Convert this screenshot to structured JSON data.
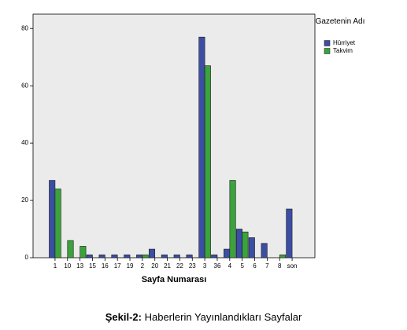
{
  "chart_data": {
    "type": "bar",
    "categories": [
      "1",
      "10",
      "13",
      "15",
      "16",
      "17",
      "19",
      "2",
      "20",
      "21",
      "22",
      "23",
      "3",
      "36",
      "4",
      "5",
      "6",
      "7",
      "8",
      "son"
    ],
    "series": [
      {
        "name": "Hürriyet",
        "color": "#3b4ea3",
        "values": [
          27,
          0,
          0,
          1,
          1,
          1,
          1,
          1,
          3,
          1,
          1,
          1,
          77,
          1,
          3,
          10,
          7,
          5,
          0,
          17
        ]
      },
      {
        "name": "Takvim",
        "color": "#3ba33b",
        "values": [
          24,
          6,
          4,
          0,
          0,
          0,
          0,
          1,
          0,
          0,
          0,
          0,
          67,
          0,
          27,
          9,
          0,
          0,
          1,
          0
        ]
      }
    ],
    "x_label": "Sayfa Numarası",
    "legend_title": "Gazetenin Adı",
    "ylim": [
      0,
      85
    ],
    "yticks": [
      0,
      20,
      40,
      60,
      80
    ]
  },
  "caption": {
    "label": "Şekil-2:",
    "text": "Haberlerin Yayınlandıkları Sayfalar"
  }
}
